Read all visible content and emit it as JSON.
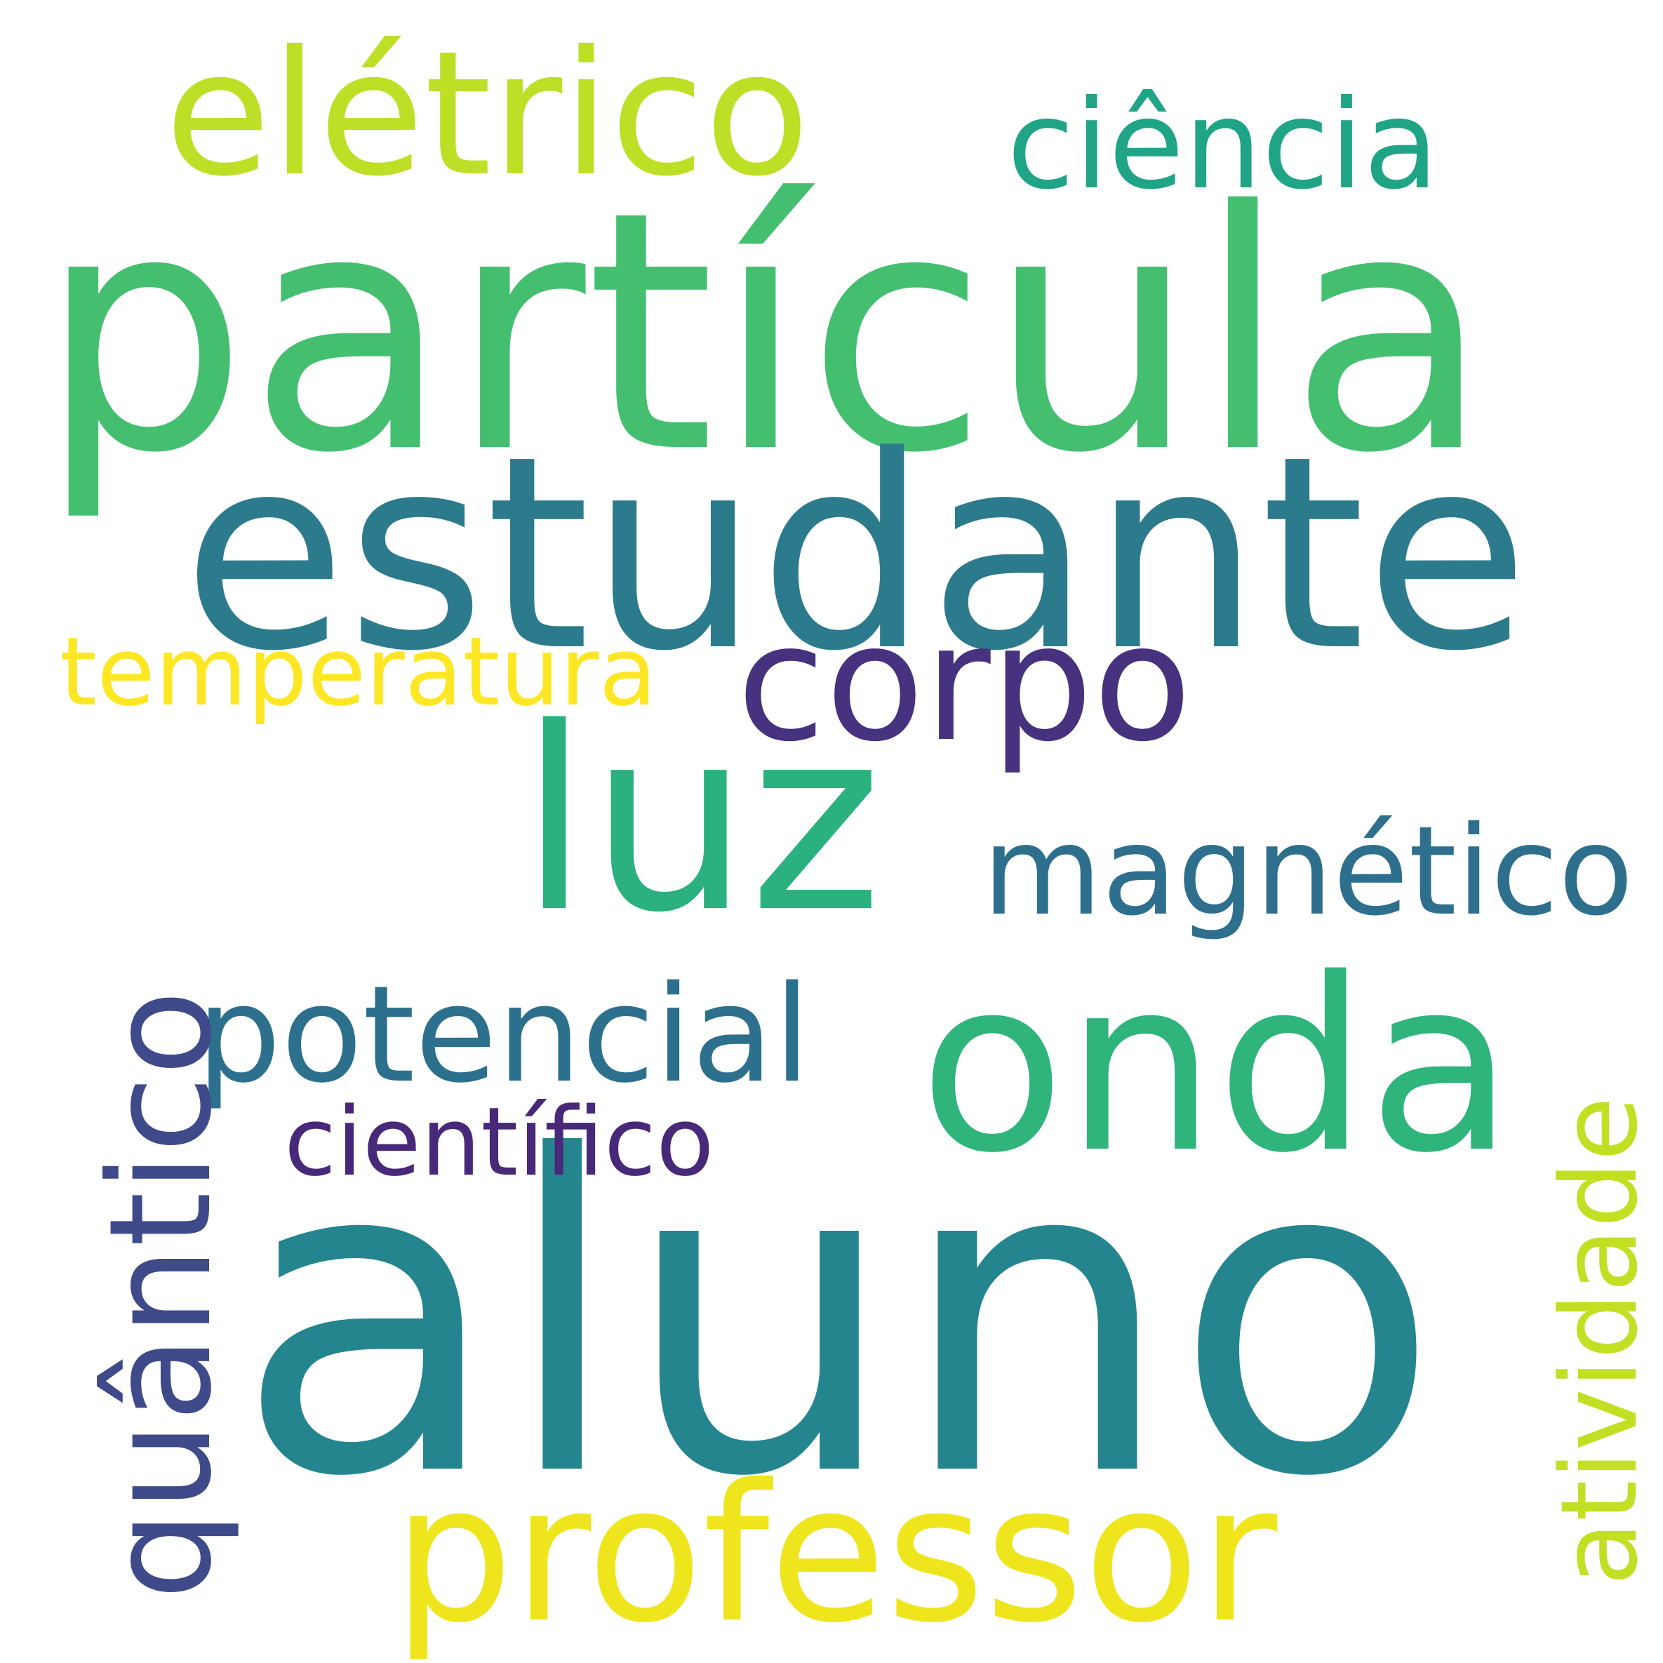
{
  "cloud": {
    "words": {
      "particula": {
        "text": "partícula",
        "color": "#44bf70"
      },
      "estudante": {
        "text": "estudante",
        "color": "#2c7b8c"
      },
      "aluno": {
        "text": "aluno",
        "color": "#25858e"
      },
      "luz": {
        "text": "luz",
        "color": "#2bb07f"
      },
      "onda": {
        "text": "onda",
        "color": "#2fb47c"
      },
      "eletrico": {
        "text": "elétrico",
        "color": "#bddf26"
      },
      "ciencia": {
        "text": "ciência",
        "color": "#20a486"
      },
      "corpo": {
        "text": "corpo",
        "color": "#46327e"
      },
      "temperatura": {
        "text": "temperatura",
        "color": "#fde725"
      },
      "magnetico": {
        "text": "magnético",
        "color": "#2e6f8e"
      },
      "potencial": {
        "text": "potencial",
        "color": "#2d708e"
      },
      "cientifico": {
        "text": "científico",
        "color": "#482878"
      },
      "professor": {
        "text": "professor",
        "color": "#efe51c"
      },
      "quantico": {
        "text": "quântico",
        "color": "#3e4a89"
      },
      "atividade": {
        "text": "atividade",
        "color": "#c2df23"
      }
    }
  }
}
